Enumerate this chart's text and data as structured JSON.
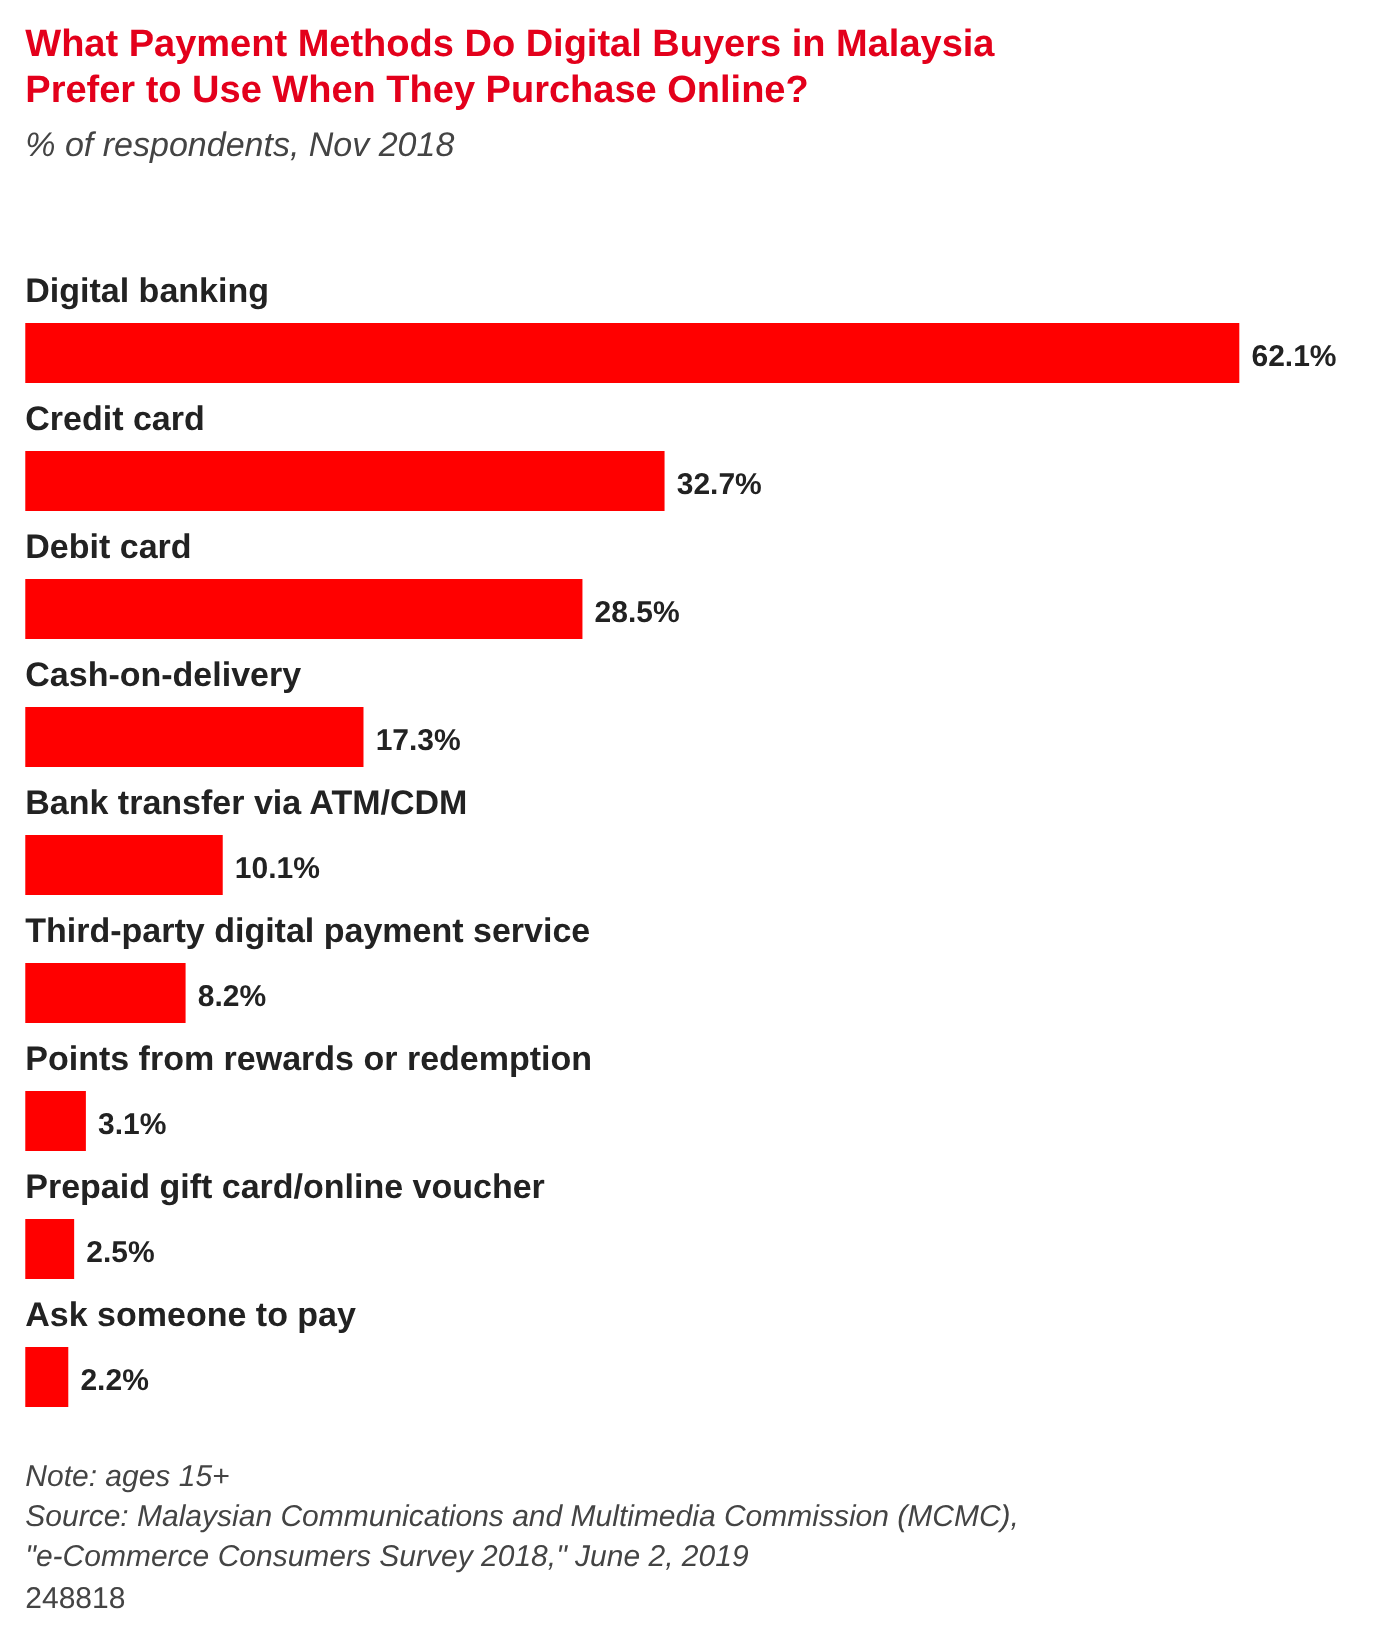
{
  "chart_data": {
    "type": "bar",
    "orientation": "horizontal",
    "title": "What Payment Methods Do Digital Buyers in Malaysia Prefer to Use When They Purchase Online?",
    "subtitle": "% of respondents, Nov 2018",
    "categories": [
      "Digital banking",
      "Credit card",
      "Debit card",
      "Cash-on-delivery",
      "Bank transfer via ATM/CDM",
      "Third-party digital payment service",
      "Points from rewards or redemption",
      "Prepaid gift card/online voucher",
      "Ask someone to pay"
    ],
    "values": [
      62.1,
      32.7,
      28.5,
      17.3,
      10.1,
      8.2,
      3.1,
      2.5,
      2.2
    ],
    "value_labels": [
      "62.1%",
      "32.7%",
      "28.5%",
      "17.3%",
      "10.1%",
      "8.2%",
      "3.1%",
      "2.5%",
      "2.2%"
    ],
    "color": "#ff0000",
    "annotations": [
      "Note: ages 15+",
      "Source: Malaysian Communications and Multimedia Commission (MCMC), \"e-Commerce Consumers Survey 2018,\" June 2, 2019",
      "248818"
    ]
  }
}
